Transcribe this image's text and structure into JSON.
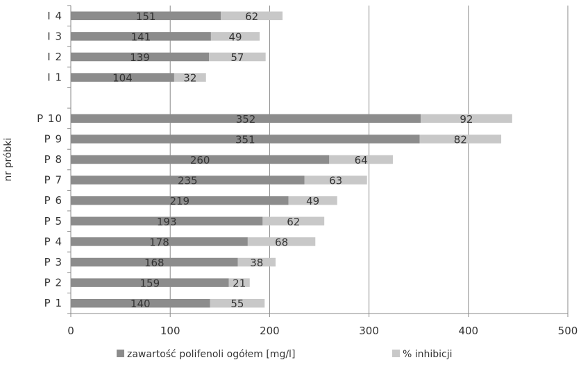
{
  "chart_data": {
    "type": "bar",
    "orientation": "horizontal",
    "stacked": true,
    "ylabel": "nr próbki",
    "xlabel": "",
    "xlim": [
      0,
      500
    ],
    "xticks": [
      0,
      100,
      200,
      300,
      400,
      500
    ],
    "grid": true,
    "legend_position": "bottom",
    "categories": [
      "I 4",
      "I 3",
      "I 2",
      "I 1",
      "",
      "P 10",
      "P 9",
      "P 8",
      "P 7",
      "P 6",
      "P 5",
      "P 4",
      "P 3",
      "P 2",
      "P 1"
    ],
    "series": [
      {
        "name": "zawartość polifenoli ogółem [mg/l]",
        "color": "#8c8c8c",
        "values": [
          151,
          141,
          139,
          104,
          null,
          352,
          351,
          260,
          235,
          219,
          193,
          178,
          168,
          159,
          140
        ]
      },
      {
        "name": "% inhibicji",
        "color": "#c8c8c8",
        "values": [
          62,
          49,
          57,
          32,
          null,
          92,
          82,
          64,
          63,
          49,
          62,
          68,
          38,
          21,
          55
        ]
      }
    ]
  }
}
